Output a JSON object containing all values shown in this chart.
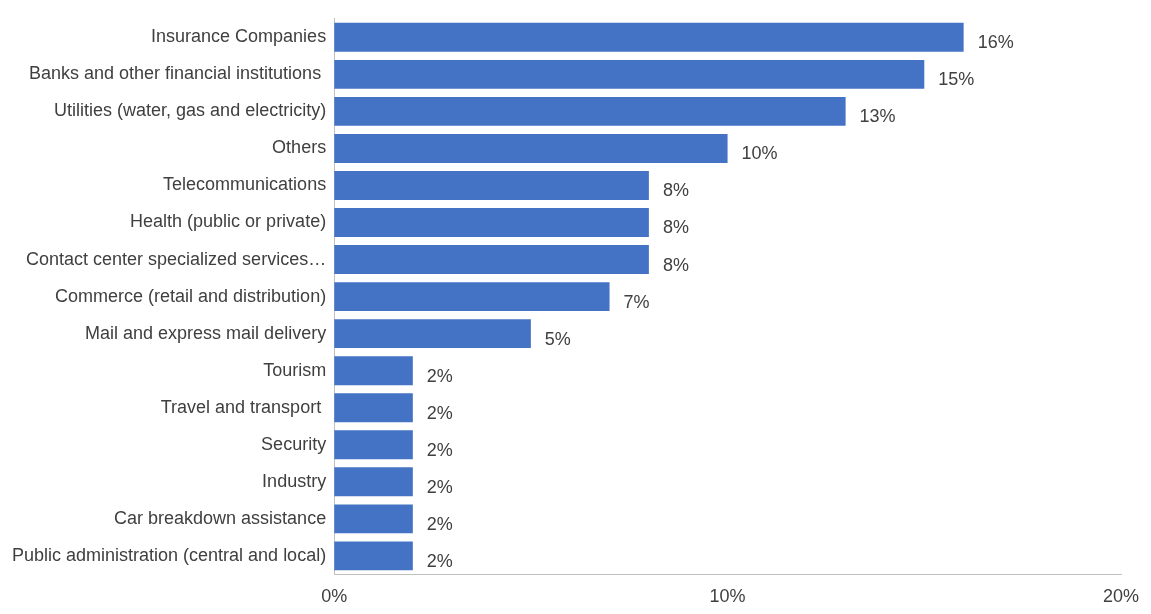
{
  "chart_data": {
    "type": "bar",
    "orientation": "horizontal",
    "categories": [
      "Insurance Companies",
      "Banks and other financial institutions ",
      "Utilities (water, gas and electricity)",
      "Others",
      "Telecommunications",
      "Health (public or private)",
      "Contact center specialized services…",
      "Commerce (retail and distribution)",
      "Mail and express mail delivery",
      "Tourism",
      "Travel and transport ",
      "Security",
      "Industry",
      "Car breakdown assistance",
      "Public administration (central and local)"
    ],
    "values": [
      16,
      15,
      13,
      10,
      8,
      8,
      8,
      7,
      5,
      2,
      2,
      2,
      2,
      2,
      2
    ],
    "value_labels": [
      "16%",
      "15%",
      "13%",
      "10%",
      "8%",
      "8%",
      "8%",
      "7%",
      "5%",
      "2%",
      "2%",
      "2%",
      "2%",
      "2%",
      "2%"
    ],
    "color": "#4472c4",
    "xlim": [
      0,
      20
    ],
    "xticks": [
      {
        "value": 0,
        "label": "0%"
      },
      {
        "value": 10,
        "label": "10%"
      },
      {
        "value": 20,
        "label": "20%"
      }
    ],
    "grid": false,
    "legend": false
  }
}
